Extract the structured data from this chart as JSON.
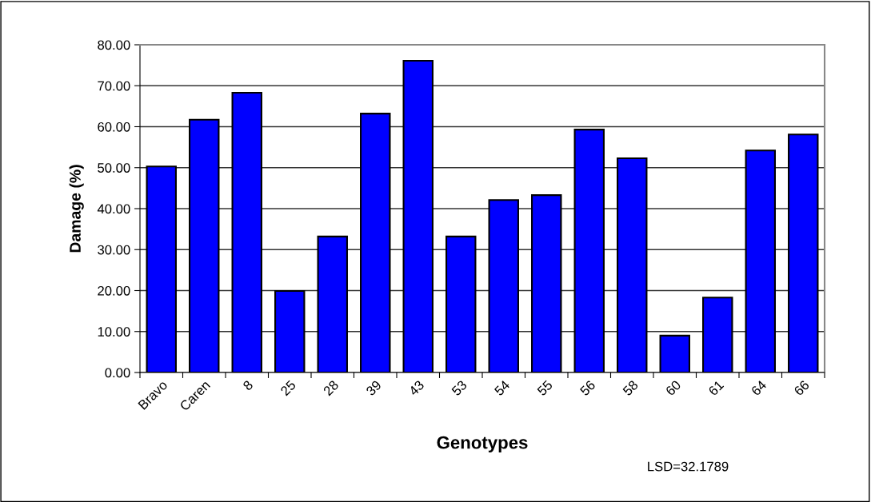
{
  "chart_data": {
    "type": "bar",
    "xlabel": "Genotypes",
    "ylabel": "Damage (%)",
    "categories": [
      "Bravo",
      "Caren",
      "8",
      "25",
      "28",
      "39",
      "43",
      "53",
      "54",
      "55",
      "56",
      "58",
      "60",
      "61",
      "64",
      "66"
    ],
    "values": [
      50.3,
      61.7,
      68.3,
      19.9,
      33.2,
      63.2,
      76.1,
      33.2,
      42.1,
      43.3,
      59.3,
      52.3,
      9.0,
      18.3,
      54.2,
      58.1
    ],
    "color": "#0000ff",
    "ylim": [
      0,
      80
    ],
    "yticks": [
      {
        "value": 0,
        "label": "0.00"
      },
      {
        "value": 10,
        "label": "10.00"
      },
      {
        "value": 20,
        "label": "20.00"
      },
      {
        "value": 30,
        "label": "30.00"
      },
      {
        "value": 40,
        "label": "40.00"
      },
      {
        "value": 50,
        "label": "50.00"
      },
      {
        "value": 60,
        "label": "60.00"
      },
      {
        "value": 70,
        "label": "70.00"
      },
      {
        "value": 80,
        "label": "80.00"
      }
    ],
    "grid": "y",
    "annotations": [
      "LSD=32.1789"
    ]
  }
}
